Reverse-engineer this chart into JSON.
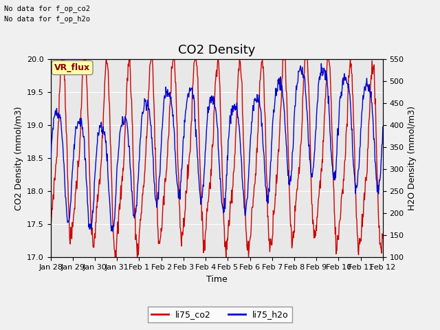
{
  "title": "CO2 Density",
  "xlabel": "Time",
  "ylabel_left": "CO2 Density (mmol/m3)",
  "ylabel_right": "H2O Density (mmol/m3)",
  "top_text_1": "No data for f_op_co2",
  "top_text_2": "No data for f_op_h2o",
  "vr_flux_label": "VR_flux",
  "ylim_left": [
    17.0,
    20.0
  ],
  "ylim_right": [
    100,
    550
  ],
  "yticks_left": [
    17.0,
    17.5,
    18.0,
    18.5,
    19.0,
    19.5,
    20.0
  ],
  "yticks_right": [
    100,
    150,
    200,
    250,
    300,
    350,
    400,
    450,
    500,
    550
  ],
  "xtick_labels": [
    "Jan 28",
    "Jan 29",
    "Jan 30",
    "Jan 31",
    "Feb 1",
    "Feb 2",
    "Feb 3",
    "Feb 4",
    "Feb 5",
    "Feb 6",
    "Feb 7",
    "Feb 8",
    "Feb 9",
    "Feb 10",
    "Feb 11",
    "Feb 12"
  ],
  "line_color_co2": "#cc0000",
  "line_color_h2o": "#0000cc",
  "legend_label_co2": "li75_co2",
  "legend_label_h2o": "li75_h2o",
  "plot_bg_color": "#e8e8e8",
  "fig_bg_color": "#f0f0f0",
  "grid_color": "#ffffff",
  "title_fontsize": 13,
  "label_fontsize": 9,
  "tick_fontsize": 8,
  "line_width": 1.0
}
